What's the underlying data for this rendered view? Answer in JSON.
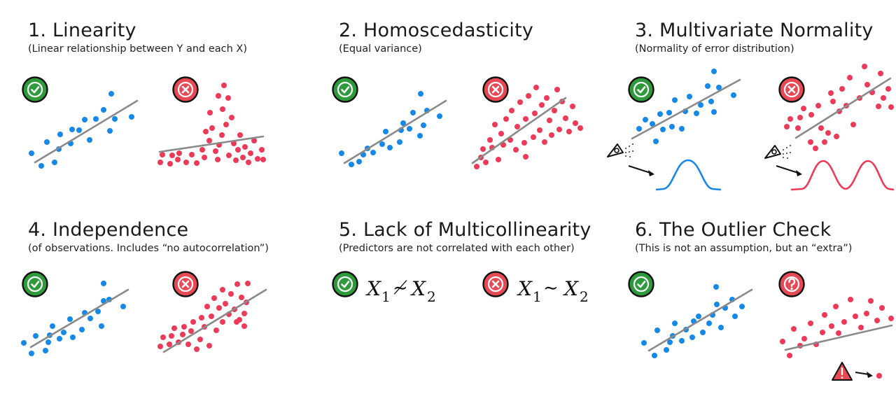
{
  "colors": {
    "good": "#2e9a3c",
    "bad": "#e84a55",
    "blue_points": "#1588e8",
    "red_points": "#ec3a58",
    "line": "#8a8a8a",
    "badge_stroke": "#111111"
  },
  "icons": {
    "good": "check-icon",
    "bad": "x-icon",
    "question": "question-icon",
    "warning": "warning-icon",
    "eye": "eye-icon"
  },
  "panels": [
    {
      "title": "1. Linearity",
      "subtitle": "(Linear relationship between Y and each X)"
    },
    {
      "title": "2. Homoscedasticity",
      "subtitle": "(Equal variance)"
    },
    {
      "title": "3. Multivariate Normality",
      "subtitle": "(Normality of error distribution)"
    },
    {
      "title": "4. Independence",
      "subtitle": "(of observations. Includes “no autocorrelation”)"
    },
    {
      "title": "5. Lack of Multicollinearity",
      "subtitle": "(Predictors are not correlated with each other)"
    },
    {
      "title": "6. The Outlier Check",
      "subtitle": "(This is not an assumption, but an “extra”)"
    }
  ],
  "formulas": {
    "good": {
      "var_a": "X",
      "sub_a": "1",
      "relation": "≁",
      "var_b": "X",
      "sub_b": "2"
    },
    "bad": {
      "var_a": "X",
      "sub_a": "1",
      "relation": "∼",
      "var_b": "X",
      "sub_b": "2"
    }
  }
}
